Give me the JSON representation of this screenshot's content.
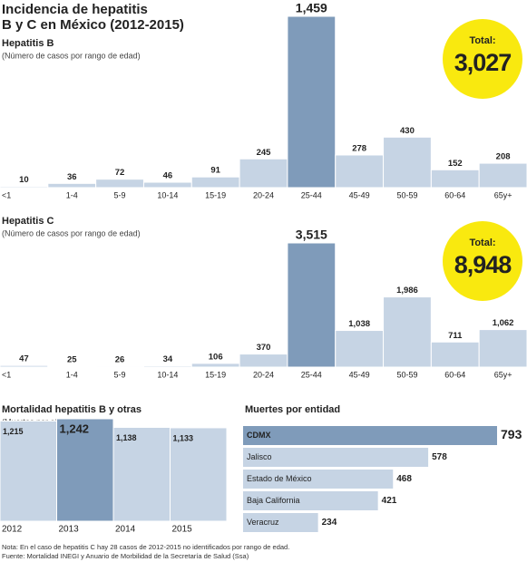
{
  "title": [
    "Incidencia de hepatitis",
    "B y C en México (2012-2015)"
  ],
  "chart_data": [
    {
      "type": "bar",
      "title": "Hepatitis B",
      "subtitle": "(Número de casos por rango de edad)",
      "categories": [
        "<1",
        "1-4",
        "5-9",
        "10-14",
        "15-19",
        "20-24",
        "25-44",
        "45-49",
        "50-59",
        "60-64",
        "65y+"
      ],
      "values": [
        10,
        36,
        72,
        46,
        91,
        245,
        1459,
        278,
        430,
        152,
        208
      ],
      "value_labels": [
        "10",
        "36",
        "72",
        "46",
        "91",
        "245",
        "1,459",
        "278",
        "430",
        "152",
        "208"
      ],
      "color": "#c6d4e4",
      "highlight_color": "#7f9bba",
      "highlight_index": 6,
      "total_label": "Total:",
      "total": {
        "value": 3027,
        "label": "3,027"
      },
      "total_color": "#f9e90f"
    },
    {
      "type": "bar",
      "title": "Hepatitis C",
      "subtitle": "(Número de casos por rango de edad)",
      "categories": [
        "<1",
        "1-4",
        "5-9",
        "10-14",
        "15-19",
        "20-24",
        "25-44",
        "45-49",
        "50-59",
        "60-64",
        "65y+"
      ],
      "values": [
        47,
        25,
        26,
        34,
        106,
        370,
        3515,
        1038,
        1986,
        711,
        1062
      ],
      "value_labels": [
        "47",
        "25",
        "26",
        "34",
        "106",
        "370",
        "3,515",
        "1,038",
        "1,986",
        "711",
        "1,062"
      ],
      "color": "#c6d4e4",
      "highlight_color": "#7f9bba",
      "highlight_index": 6,
      "total_label": "Total:",
      "total": {
        "value": 8948,
        "label": "8,948"
      },
      "total_color": "#f9e90f"
    },
    {
      "type": "bar",
      "title": "Mortalidad hepatitis B y otras",
      "subtitle": "(Muertes por año)",
      "categories": [
        "2012",
        "2013",
        "2014",
        "2015"
      ],
      "values": [
        1215,
        1242,
        1138,
        1133
      ],
      "value_labels": [
        "1,215",
        "1,242",
        "1,138",
        "1,133"
      ],
      "color": "#c6d4e4",
      "highlight_color": "#7f9bba",
      "highlight_index": 1
    },
    {
      "type": "barh",
      "title": "Muertes por entidad",
      "categories": [
        "CDMX",
        "Jalisco",
        "Estado de México",
        "Baja California",
        "Veracruz"
      ],
      "values": [
        793,
        578,
        468,
        421,
        234
      ],
      "color": "#c6d4e4",
      "highlight_color": "#7f9bba",
      "highlight_index": 0
    }
  ],
  "notes": [
    "Nota: En el caso de hepatitis C hay 28 casos de 2012-2015 no identificados por rango de edad.",
    "Fuente: Mortalidad INEGI y Anuario de Morbilidad de la Secretaría de Salud (Ssa)"
  ]
}
